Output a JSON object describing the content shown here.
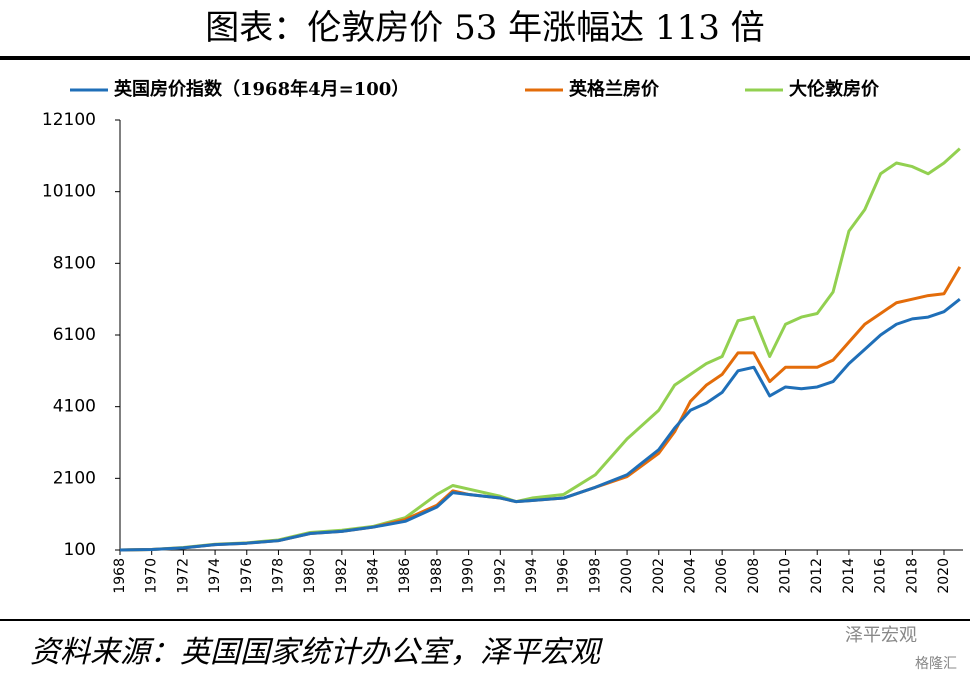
{
  "chart_data": {
    "type": "line",
    "title": "图表：伦敦房价 53 年涨幅达 113 倍",
    "source": "资料来源：英国国家统计办公室，泽平宏观",
    "watermarks": [
      "泽平宏观",
      "格隆汇"
    ],
    "x": [
      1968,
      1970,
      1972,
      1974,
      1976,
      1978,
      1980,
      1982,
      1984,
      1986,
      1988,
      1989,
      1990,
      1992,
      1993,
      1994,
      1996,
      1998,
      2000,
      2002,
      2003,
      2004,
      2005,
      2006,
      2007,
      2008,
      2009,
      2010,
      2011,
      2012,
      2013,
      2014,
      2015,
      2016,
      2017,
      2018,
      2019,
      2020,
      2021
    ],
    "series": [
      {
        "name": "英国房价指数（1968年4月=100）",
        "color": "#1f6fb8",
        "values": [
          100,
          115,
          160,
          250,
          290,
          360,
          560,
          620,
          740,
          900,
          1300,
          1700,
          1650,
          1550,
          1450,
          1480,
          1550,
          1850,
          2200,
          2900,
          3500,
          4000,
          4200,
          4500,
          5100,
          5200,
          4400,
          4650,
          4600,
          4650,
          4800,
          5300,
          5700,
          6100,
          6400,
          6550,
          6600,
          6750,
          7100
        ]
      },
      {
        "name": "英格兰房价",
        "color": "#e36c0a",
        "values": [
          100,
          115,
          160,
          250,
          290,
          360,
          560,
          620,
          740,
          950,
          1350,
          1750,
          1650,
          1550,
          1450,
          1480,
          1550,
          1850,
          2150,
          2800,
          3400,
          4250,
          4700,
          5000,
          5600,
          5600,
          4800,
          5200,
          5200,
          5200,
          5400,
          5900,
          6400,
          6700,
          7000,
          7100,
          7200,
          7250,
          8000
        ]
      },
      {
        "name": "大伦敦房价",
        "color": "#92d050",
        "values": [
          100,
          115,
          170,
          260,
          300,
          380,
          590,
          650,
          760,
          1000,
          1650,
          1900,
          1800,
          1600,
          1450,
          1550,
          1650,
          2200,
          3200,
          4000,
          4700,
          5000,
          5300,
          5500,
          6500,
          6600,
          5500,
          6400,
          6600,
          6700,
          7300,
          9000,
          9600,
          10600,
          10900,
          10800,
          10600,
          10900,
          11300
        ]
      }
    ],
    "xlim": [
      1968,
      2021.2
    ],
    "xticks": [
      1968,
      1970,
      1972,
      1974,
      1976,
      1978,
      1980,
      1982,
      1984,
      1986,
      1988,
      1990,
      1992,
      1994,
      1996,
      1998,
      2000,
      2002,
      2004,
      2006,
      2008,
      2010,
      2012,
      2014,
      2016,
      2018,
      2020
    ],
    "ylim": [
      100,
      12100
    ],
    "yticks": [
      100,
      2100,
      4100,
      6100,
      8100,
      10100,
      12100
    ],
    "grid": false
  }
}
